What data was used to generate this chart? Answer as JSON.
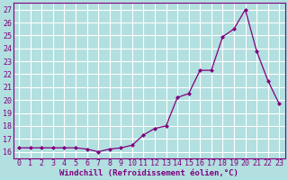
{
  "x": [
    0,
    1,
    2,
    3,
    4,
    5,
    6,
    7,
    8,
    9,
    10,
    11,
    12,
    13,
    14,
    15,
    16,
    17,
    18,
    19,
    20,
    21,
    22,
    23
  ],
  "y": [
    16.3,
    16.3,
    16.3,
    16.3,
    16.3,
    16.3,
    16.2,
    16.0,
    16.2,
    16.3,
    16.5,
    17.3,
    17.8,
    18.0,
    20.2,
    20.5,
    22.3,
    22.3,
    24.9,
    25.5,
    27.0,
    23.8,
    21.5,
    19.7
  ],
  "xlabel": "Windchill (Refroidissement éolien,°C)",
  "ylim": [
    15.5,
    27.5
  ],
  "yticks": [
    16,
    17,
    18,
    19,
    20,
    21,
    22,
    23,
    24,
    25,
    26,
    27
  ],
  "xticks": [
    0,
    1,
    2,
    3,
    4,
    5,
    6,
    7,
    8,
    9,
    10,
    11,
    12,
    13,
    14,
    15,
    16,
    17,
    18,
    19,
    20,
    21,
    22,
    23
  ],
  "line_color": "#800080",
  "marker": "D",
  "marker_size": 2.0,
  "bg_color": "#b2dfdf",
  "grid_color": "#c8e8e8",
  "xlabel_fontsize": 6.5,
  "tick_fontsize": 6.0,
  "linewidth": 0.9
}
